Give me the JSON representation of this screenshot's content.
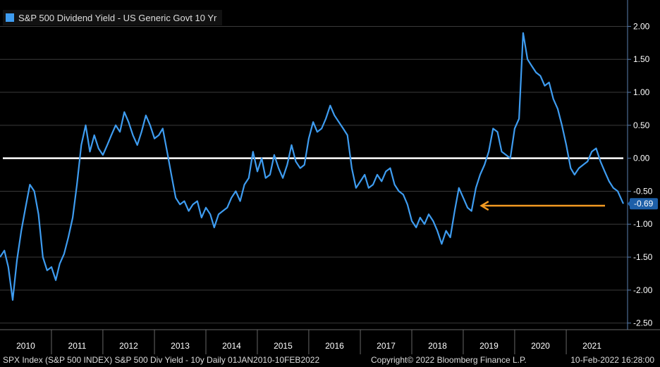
{
  "chart_data": {
    "type": "line",
    "legend": {
      "label": "S&P 500 Dividend Yield - US Generic Govt 10 Yr",
      "position": "top-left"
    },
    "colors": {
      "series": "#3e9cf0",
      "zero_line": "#ffffff",
      "arrow": "#f39a22",
      "grid": "#3a3a3a",
      "axis": "#5a7fb0"
    },
    "x_labels": [
      "2010",
      "2011",
      "2012",
      "2013",
      "2014",
      "2015",
      "2016",
      "2017",
      "2018",
      "2019",
      "2020",
      "2021"
    ],
    "y_ticks": [
      2.0,
      1.5,
      1.0,
      0.5,
      0.0,
      -0.5,
      -1.0,
      -1.5,
      -2.0,
      -2.5
    ],
    "ylim": [
      -2.6,
      2.4
    ],
    "xlim": [
      "2010-01-01",
      "2022-02-10"
    ],
    "grid": true,
    "reference_line": 0.0,
    "last_value": {
      "label": "-0.69",
      "value": -0.69
    },
    "annotation": {
      "type": "arrow",
      "color": "orange",
      "from": [
        "2022-02-10",
        -0.72
      ],
      "to": [
        "2019-03-01",
        -0.72
      ]
    },
    "series": [
      {
        "x": [
          "2010-01-01",
          "2010-02-01",
          "2010-03-01",
          "2010-04-01",
          "2010-05-01",
          "2010-06-01",
          "2010-07-01",
          "2010-08-01",
          "2010-09-01",
          "2010-10-01",
          "2010-11-01",
          "2010-12-01",
          "2011-01-01",
          "2011-02-01",
          "2011-03-01",
          "2011-04-01",
          "2011-05-01",
          "2011-06-01",
          "2011-07-01",
          "2011-08-01",
          "2011-09-01",
          "2011-10-01",
          "2011-11-01",
          "2011-12-01",
          "2012-01-01",
          "2012-02-01",
          "2012-03-01",
          "2012-04-01",
          "2012-05-01",
          "2012-06-01",
          "2012-07-01",
          "2012-08-01",
          "2012-09-01",
          "2012-10-01",
          "2012-11-01",
          "2012-12-01",
          "2013-01-01",
          "2013-02-01",
          "2013-03-01",
          "2013-04-01",
          "2013-05-01",
          "2013-06-01",
          "2013-07-01",
          "2013-08-01",
          "2013-09-01",
          "2013-10-01",
          "2013-11-01",
          "2013-12-01",
          "2014-01-01",
          "2014-02-01",
          "2014-03-01",
          "2014-04-01",
          "2014-05-01",
          "2014-06-01",
          "2014-07-01",
          "2014-08-01",
          "2014-09-01",
          "2014-10-01",
          "2014-11-01",
          "2014-12-01",
          "2015-01-01",
          "2015-02-01",
          "2015-03-01",
          "2015-04-01",
          "2015-05-01",
          "2015-06-01",
          "2015-07-01",
          "2015-08-01",
          "2015-09-01",
          "2015-10-01",
          "2015-11-01",
          "2015-12-01",
          "2016-01-01",
          "2016-02-01",
          "2016-03-01",
          "2016-04-01",
          "2016-05-01",
          "2016-06-01",
          "2016-07-01",
          "2016-08-01",
          "2016-09-01",
          "2016-10-01",
          "2016-11-01",
          "2016-12-01",
          "2017-01-01",
          "2017-02-01",
          "2017-03-01",
          "2017-04-01",
          "2017-05-01",
          "2017-06-01",
          "2017-07-01",
          "2017-08-01",
          "2017-09-01",
          "2017-10-01",
          "2017-11-01",
          "2017-12-01",
          "2018-01-01",
          "2018-02-01",
          "2018-03-01",
          "2018-04-01",
          "2018-05-01",
          "2018-06-01",
          "2018-07-01",
          "2018-08-01",
          "2018-09-01",
          "2018-10-01",
          "2018-11-01",
          "2018-12-01",
          "2019-01-01",
          "2019-02-01",
          "2019-03-01",
          "2019-04-01",
          "2019-05-01",
          "2019-06-01",
          "2019-07-01",
          "2019-08-01",
          "2019-09-01",
          "2019-10-01",
          "2019-11-01",
          "2019-12-01",
          "2020-01-01",
          "2020-02-01",
          "2020-03-01",
          "2020-04-01",
          "2020-05-01",
          "2020-06-01",
          "2020-07-01",
          "2020-08-01",
          "2020-09-01",
          "2020-10-01",
          "2020-11-01",
          "2020-12-01",
          "2021-01-01",
          "2021-02-01",
          "2021-03-01",
          "2021-04-01",
          "2021-05-01",
          "2021-06-01",
          "2021-07-01",
          "2021-08-01",
          "2021-09-01",
          "2021-10-01",
          "2021-11-01",
          "2021-12-01",
          "2022-01-01",
          "2022-02-10"
        ],
        "values": [
          -1.5,
          -1.4,
          -1.65,
          -2.15,
          -1.55,
          -1.1,
          -0.75,
          -0.4,
          -0.5,
          -0.85,
          -1.5,
          -1.7,
          -1.65,
          -1.85,
          -1.6,
          -1.45,
          -1.2,
          -0.9,
          -0.4,
          0.2,
          0.5,
          0.1,
          0.35,
          0.15,
          0.05,
          0.2,
          0.35,
          0.5,
          0.4,
          0.7,
          0.55,
          0.35,
          0.2,
          0.4,
          0.65,
          0.5,
          0.3,
          0.35,
          0.45,
          0.1,
          -0.25,
          -0.6,
          -0.7,
          -0.65,
          -0.8,
          -0.7,
          -0.65,
          -0.9,
          -0.75,
          -0.85,
          -1.05,
          -0.85,
          -0.8,
          -0.75,
          -0.6,
          -0.5,
          -0.65,
          -0.4,
          -0.3,
          0.1,
          -0.2,
          0.0,
          -0.3,
          -0.25,
          0.05,
          -0.15,
          -0.3,
          -0.1,
          0.2,
          -0.05,
          -0.15,
          -0.1,
          0.3,
          0.55,
          0.4,
          0.45,
          0.6,
          0.8,
          0.65,
          0.55,
          0.45,
          0.35,
          -0.15,
          -0.45,
          -0.35,
          -0.25,
          -0.45,
          -0.4,
          -0.25,
          -0.35,
          -0.2,
          -0.15,
          -0.4,
          -0.5,
          -0.55,
          -0.7,
          -0.95,
          -1.05,
          -0.9,
          -1.0,
          -0.85,
          -0.95,
          -1.1,
          -1.3,
          -1.1,
          -1.2,
          -0.8,
          -0.45,
          -0.6,
          -0.75,
          -0.8,
          -0.45,
          -0.25,
          -0.1,
          0.1,
          0.45,
          0.4,
          0.1,
          0.05,
          0.0,
          0.45,
          0.6,
          1.9,
          1.5,
          1.4,
          1.3,
          1.25,
          1.1,
          1.15,
          0.9,
          0.75,
          0.5,
          0.2,
          -0.15,
          -0.25,
          -0.15,
          -0.1,
          -0.05,
          0.1,
          0.15,
          -0.05,
          -0.2,
          -0.35,
          -0.45,
          -0.5,
          -0.69
        ]
      }
    ]
  },
  "footer": {
    "left": "SPX Index (S&P 500 INDEX) S&P 500 Div Yield - 10y  Daily 01JAN2010-10FEB2022",
    "center": "Copyright© 2022 Bloomberg Finance L.P.",
    "right": "10-Feb-2022 16:28:00"
  }
}
